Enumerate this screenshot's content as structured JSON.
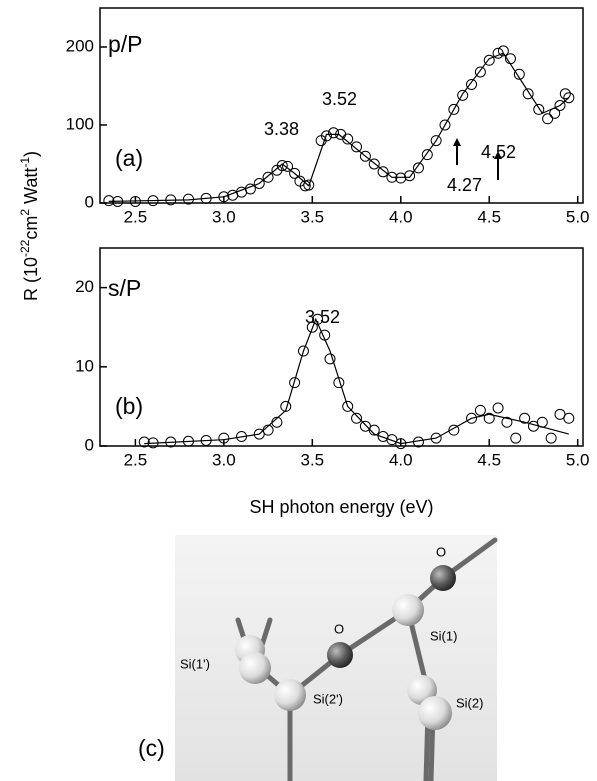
{
  "chart_data": [
    {
      "type": "scatter",
      "panel": "(a)",
      "mode": "p/P",
      "ylabel": [
        "R  (10",
        "-22",
        "cm",
        "2",
        " Watt",
        "-1",
        ")"
      ],
      "xlim": [
        2.3,
        5.03
      ],
      "ylim": [
        0,
        250
      ],
      "xticks": [
        2.5,
        {
          "value": 3,
          "label": "3.0"
        },
        3.5,
        {
          "value": 4,
          "label": "4.0"
        },
        4.5,
        {
          "value": 5,
          "label": "5.0"
        }
      ],
      "yticks": [
        0,
        100,
        200
      ],
      "annotations": [
        "3.38",
        "3.52",
        "4.27",
        "4.52"
      ],
      "series": [
        {
          "style": "markers",
          "color": "#000000",
          "x": [
            2.35,
            2.4,
            2.5,
            2.6,
            2.7,
            2.8,
            2.9,
            3.0,
            3.05,
            3.1,
            3.15,
            3.2,
            3.25,
            3.3,
            3.33,
            3.36,
            3.4,
            3.43,
            3.46,
            3.48,
            3.55,
            3.58,
            3.62,
            3.66,
            3.7,
            3.75,
            3.8,
            3.85,
            3.9,
            3.95,
            4.0,
            4.05,
            4.1,
            4.15,
            4.2,
            4.25,
            4.3,
            4.35,
            4.4,
            4.45,
            4.5,
            4.55,
            4.58,
            4.62,
            4.67,
            4.72,
            4.78,
            4.83,
            4.87,
            4.9,
            4.93,
            4.95
          ],
          "values": [
            3,
            2,
            2,
            3,
            4,
            5,
            6,
            8,
            10,
            14,
            18,
            25,
            33,
            42,
            48,
            47,
            38,
            28,
            22,
            23,
            80,
            86,
            90,
            88,
            82,
            72,
            60,
            50,
            40,
            33,
            32,
            35,
            45,
            62,
            80,
            100,
            120,
            138,
            152,
            168,
            183,
            192,
            195,
            185,
            165,
            140,
            120,
            108,
            115,
            125,
            140,
            135
          ]
        },
        {
          "style": "line",
          "color": "#000000",
          "x": [
            2.35,
            2.8,
            3.0,
            3.2,
            3.33,
            3.4,
            3.48,
            3.58,
            3.65,
            3.8,
            3.95,
            4.05,
            4.2,
            4.35,
            4.5,
            4.58,
            4.7,
            4.8,
            4.9,
            4.95
          ],
          "values": [
            2,
            4,
            8,
            25,
            50,
            38,
            22,
            88,
            88,
            60,
            33,
            33,
            80,
            140,
            185,
            192,
            150,
            115,
            125,
            135
          ]
        }
      ]
    },
    {
      "type": "scatter",
      "panel": "(b)",
      "mode": "s/P",
      "xlabel": "SH photon energy  (eV)",
      "xlim": [
        2.3,
        5.03
      ],
      "ylim": [
        0,
        25
      ],
      "xticks": [
        2.5,
        {
          "value": 3,
          "label": "3.0"
        },
        3.5,
        {
          "value": 4,
          "label": "4.0"
        },
        4.5,
        {
          "value": 5,
          "label": "5.0"
        }
      ],
      "yticks": [
        0,
        10,
        20
      ],
      "annotations": [
        "3.52"
      ],
      "series": [
        {
          "style": "markers",
          "color": "#000000",
          "x": [
            2.55,
            2.6,
            2.7,
            2.8,
            2.9,
            3.0,
            3.1,
            3.2,
            3.25,
            3.3,
            3.35,
            3.4,
            3.45,
            3.5,
            3.53,
            3.57,
            3.6,
            3.65,
            3.7,
            3.75,
            3.8,
            3.85,
            3.9,
            3.95,
            4.0,
            4.1,
            4.2,
            4.3,
            4.4,
            4.45,
            4.5,
            4.55,
            4.6,
            4.65,
            4.7,
            4.75,
            4.8,
            4.85,
            4.9,
            4.95
          ],
          "values": [
            0.5,
            0.4,
            0.5,
            0.6,
            0.7,
            1.0,
            1.2,
            1.5,
            2,
            3,
            5,
            8,
            12,
            15,
            16,
            14,
            11,
            8,
            5,
            3.5,
            2.5,
            2,
            1.2,
            0.8,
            0.3,
            0.5,
            1,
            2,
            3.5,
            4.5,
            3.5,
            4.8,
            3,
            1,
            3.5,
            2.5,
            3,
            1,
            4,
            3.5
          ]
        },
        {
          "style": "line",
          "color": "#000000",
          "x": [
            2.55,
            3.0,
            3.2,
            3.35,
            3.45,
            3.52,
            3.6,
            3.7,
            3.85,
            4.0,
            4.2,
            4.4,
            4.5,
            4.7,
            4.95
          ],
          "values": [
            0.3,
            0.8,
            1.5,
            4.5,
            12,
            16,
            12,
            5,
            1.5,
            0.3,
            1,
            3.5,
            4,
            3,
            1.5
          ]
        }
      ]
    }
  ],
  "structure": {
    "label": "(c)",
    "atoms": [
      "O",
      "Si(1)",
      "O",
      "Si(2')",
      "Si(1')",
      "Si(2)"
    ]
  }
}
